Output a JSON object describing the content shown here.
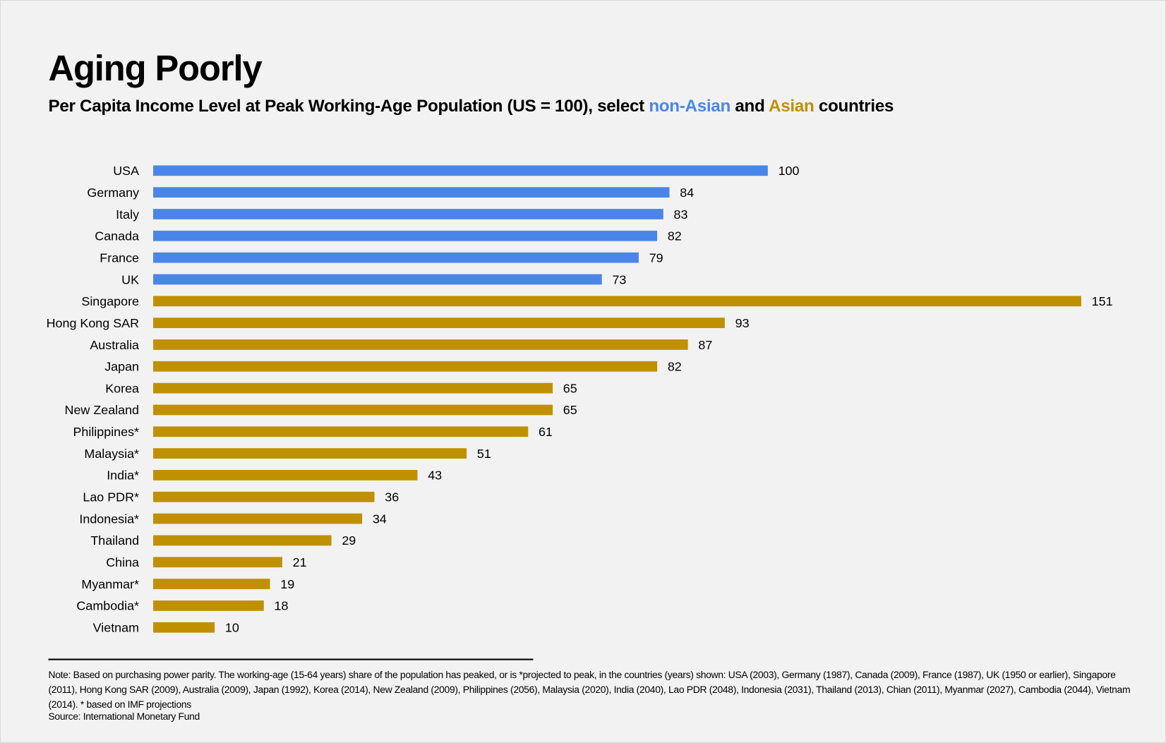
{
  "header": {
    "title": "Aging Poorly",
    "subtitle_parts": {
      "prefix": "Per Capita Income Level at Peak Working-Age Population (US = 100), select ",
      "non_asian": "non-Asian",
      "middle": " and ",
      "asian": "Asian",
      "suffix": " countries"
    }
  },
  "colors": {
    "non_asian": "#4a86e8",
    "asian": "#bf9000"
  },
  "chart_data": {
    "type": "bar",
    "orientation": "horizontal",
    "title": "Aging Poorly",
    "xlim": [
      0,
      151
    ],
    "grid": false,
    "categories": [
      "USA",
      "Germany",
      "Italy",
      "Canada",
      "France",
      "UK",
      "Singapore",
      "Hong Kong SAR",
      "Australia",
      "Japan",
      "Korea",
      "New Zealand",
      "Philippines*",
      "Malaysia*",
      "India*",
      "Lao PDR*",
      "Indonesia*",
      "Thailand",
      "China",
      "Myanmar*",
      "Cambodia*",
      "Vietnam"
    ],
    "values": [
      100,
      84,
      83,
      82,
      79,
      73,
      151,
      93,
      87,
      82,
      65,
      65,
      61,
      51,
      43,
      36,
      34,
      29,
      21,
      19,
      18,
      10
    ],
    "groups": [
      "non-Asian",
      "non-Asian",
      "non-Asian",
      "non-Asian",
      "non-Asian",
      "non-Asian",
      "Asian",
      "Asian",
      "Asian",
      "Asian",
      "Asian",
      "Asian",
      "Asian",
      "Asian",
      "Asian",
      "Asian",
      "Asian",
      "Asian",
      "Asian",
      "Asian",
      "Asian",
      "Asian"
    ]
  },
  "footer": {
    "note": "Note: Based on purchasing power parity. The working-age (15-64 years) share of the population has peaked, or is *projected to peak, in the countries (years) shown: USA (2003), Germany (1987), Canada (2009), France (1987), UK (1950 or earlier), Singapore (2011), Hong Kong SAR (2009), Australia (2009), Japan (1992), Korea (2014), New Zealand (2009), Philippines (2056), Malaysia (2020), India (2040), Lao PDR (2048), Indonesia (2031), Thailand (2013), Chian (2011), Myanmar (2027), Cambodia (2044), Vietnam (2014). * based on IMF projections",
    "source": "Source: International Monetary Fund"
  }
}
